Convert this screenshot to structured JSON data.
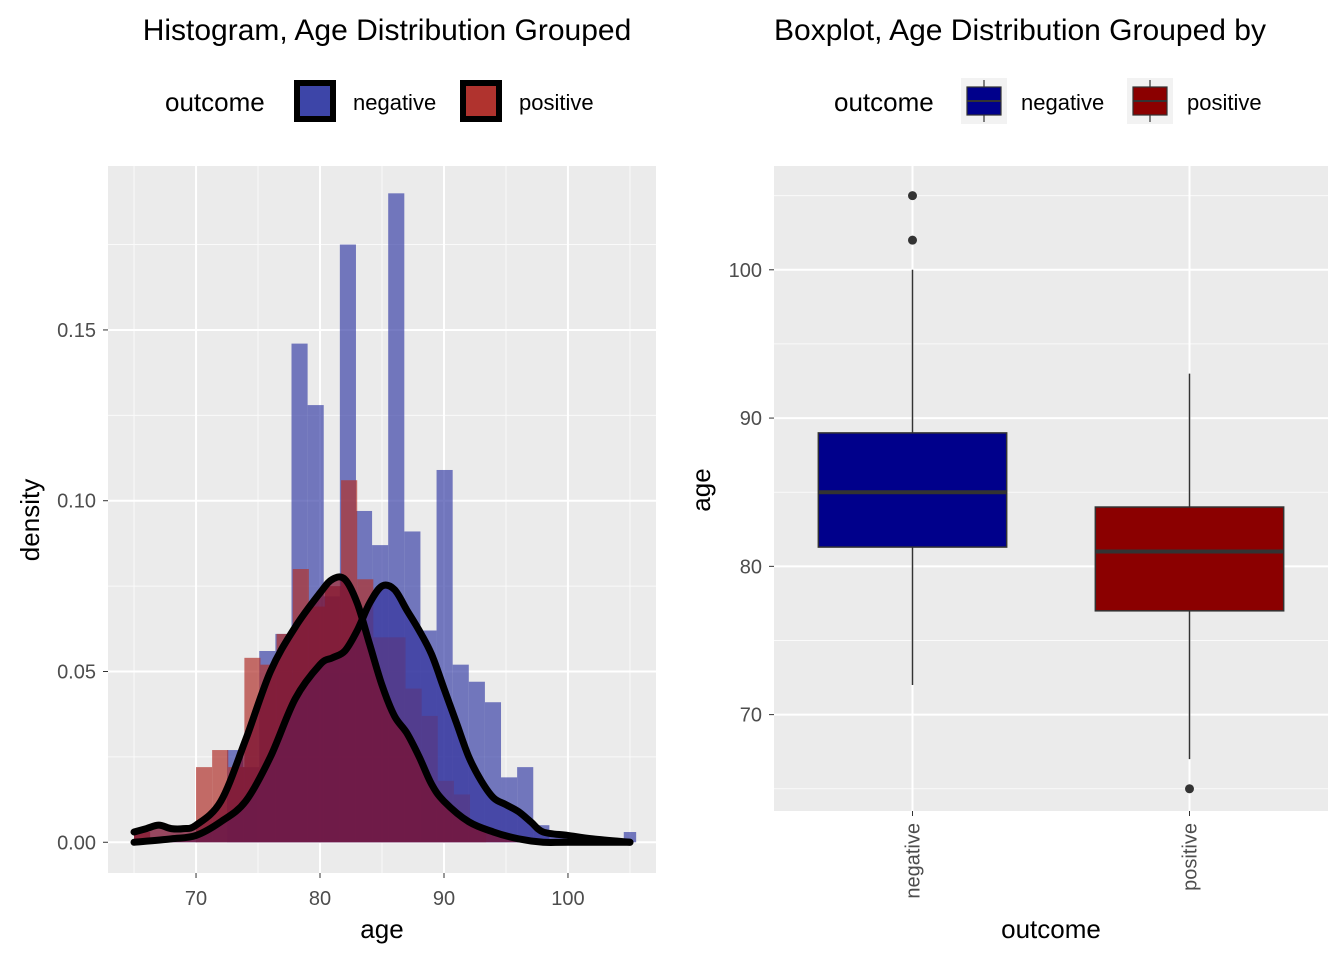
{
  "chart_data": [
    {
      "type": "histogram",
      "title": "Histogram, Age Distribution Grouped",
      "xlabel": "age",
      "ylabel": "density",
      "xlim": [
        62.9,
        107.1
      ],
      "ylim": [
        -0.009,
        0.198
      ],
      "xticks": [
        70,
        80,
        90,
        100
      ],
      "yticks": [
        0.0,
        0.05,
        0.1,
        0.15
      ],
      "ytick_labels": [
        "0.00",
        "0.05",
        "0.10",
        "0.15"
      ],
      "grid": true,
      "legend": {
        "title": "outcome",
        "position": "top",
        "entries": [
          "negative",
          "positive"
        ]
      },
      "series": [
        {
          "name": "negative",
          "color": "#3d45a8",
          "bins": [
            {
              "x0": 72.5,
              "x1": 73.8,
              "density": 0.027
            },
            {
              "x0": 73.8,
              "x1": 75.1,
              "density": 0.022
            },
            {
              "x0": 75.1,
              "x1": 76.4,
              "density": 0.056
            },
            {
              "x0": 76.4,
              "x1": 77.7,
              "density": 0.061
            },
            {
              "x0": 77.7,
              "x1": 79.0,
              "density": 0.146
            },
            {
              "x0": 79.0,
              "x1": 80.3,
              "density": 0.128
            },
            {
              "x0": 80.3,
              "x1": 81.6,
              "density": 0.072
            },
            {
              "x0": 81.6,
              "x1": 82.9,
              "density": 0.175
            },
            {
              "x0": 82.9,
              "x1": 84.2,
              "density": 0.097
            },
            {
              "x0": 84.2,
              "x1": 85.5,
              "density": 0.087
            },
            {
              "x0": 85.5,
              "x1": 86.8,
              "density": 0.19
            },
            {
              "x0": 86.8,
              "x1": 88.1,
              "density": 0.091
            },
            {
              "x0": 88.1,
              "x1": 89.4,
              "density": 0.062
            },
            {
              "x0": 89.4,
              "x1": 90.7,
              "density": 0.109
            },
            {
              "x0": 90.7,
              "x1": 92.0,
              "density": 0.052
            },
            {
              "x0": 92.0,
              "x1": 93.3,
              "density": 0.047
            },
            {
              "x0": 93.3,
              "x1": 94.6,
              "density": 0.041
            },
            {
              "x0": 94.6,
              "x1": 95.9,
              "density": 0.019
            },
            {
              "x0": 95.9,
              "x1": 97.2,
              "density": 0.022
            },
            {
              "x0": 97.2,
              "x1": 98.5,
              "density": 0.005
            },
            {
              "x0": 98.5,
              "x1": 104.5,
              "density": 0.001
            },
            {
              "x0": 104.5,
              "x1": 105.5,
              "density": 0.003
            }
          ],
          "density_curve": {
            "x": [
              65,
              68,
              70,
              72,
              74,
              76,
              78,
              80,
              81,
              82,
              83,
              84,
              85,
              86,
              87,
              88,
              89,
              90,
              91,
              92,
              93,
              94,
              95,
              96,
              97,
              98,
              100,
              102,
              105
            ],
            "y": [
              0.0,
              0.001,
              0.002,
              0.006,
              0.012,
              0.025,
              0.042,
              0.052,
              0.054,
              0.056,
              0.062,
              0.07,
              0.075,
              0.074,
              0.068,
              0.062,
              0.055,
              0.045,
              0.035,
              0.025,
              0.018,
              0.013,
              0.011,
              0.009,
              0.006,
              0.003,
              0.002,
              0.001,
              0.0
            ]
          }
        },
        {
          "name": "positive",
          "color": "#b0332e",
          "bins": [
            {
              "x0": 65.0,
              "x1": 66.3,
              "density": 0.003
            },
            {
              "x0": 70.0,
              "x1": 71.3,
              "density": 0.022
            },
            {
              "x0": 71.3,
              "x1": 72.6,
              "density": 0.027
            },
            {
              "x0": 72.6,
              "x1": 73.9,
              "density": 0.022
            },
            {
              "x0": 73.9,
              "x1": 75.2,
              "density": 0.054
            },
            {
              "x0": 75.2,
              "x1": 76.5,
              "density": 0.052
            },
            {
              "x0": 76.5,
              "x1": 77.8,
              "density": 0.061
            },
            {
              "x0": 77.8,
              "x1": 79.1,
              "density": 0.08
            },
            {
              "x0": 79.1,
              "x1": 80.4,
              "density": 0.069
            },
            {
              "x0": 80.4,
              "x1": 81.7,
              "density": 0.075
            },
            {
              "x0": 81.7,
              "x1": 83.0,
              "density": 0.106
            },
            {
              "x0": 83.0,
              "x1": 84.3,
              "density": 0.077
            },
            {
              "x0": 84.3,
              "x1": 85.6,
              "density": 0.06
            },
            {
              "x0": 85.6,
              "x1": 86.9,
              "density": 0.06
            },
            {
              "x0": 86.9,
              "x1": 88.2,
              "density": 0.045
            },
            {
              "x0": 88.2,
              "x1": 89.5,
              "density": 0.037
            },
            {
              "x0": 89.5,
              "x1": 90.8,
              "density": 0.018
            },
            {
              "x0": 90.8,
              "x1": 92.1,
              "density": 0.014
            },
            {
              "x0": 92.1,
              "x1": 93.4,
              "density": 0.005
            }
          ],
          "density_curve": {
            "x": [
              65,
              66,
              67,
              68,
              69,
              70,
              72,
              74,
              76,
              78,
              80,
              81,
              82,
              83,
              84,
              85,
              86,
              87,
              88,
              89,
              90,
              92,
              94,
              96,
              98,
              100,
              105
            ],
            "y": [
              0.003,
              0.004,
              0.005,
              0.004,
              0.004,
              0.005,
              0.012,
              0.03,
              0.05,
              0.063,
              0.073,
              0.077,
              0.077,
              0.07,
              0.058,
              0.046,
              0.037,
              0.032,
              0.025,
              0.017,
              0.012,
              0.006,
              0.003,
              0.001,
              0.0,
              0.0,
              0.0
            ]
          }
        }
      ]
    },
    {
      "type": "boxplot",
      "title": "Boxplot, Age Distribution Grouped by",
      "xlabel": "outcome",
      "ylabel": "age",
      "categories": [
        "negative",
        "positive"
      ],
      "ylim": [
        63.5,
        107
      ],
      "yticks": [
        70,
        80,
        90,
        100
      ],
      "grid": true,
      "legend": {
        "title": "outcome",
        "position": "top",
        "entries": [
          "negative",
          "positive"
        ]
      },
      "series": [
        {
          "name": "negative",
          "color": "#00008b",
          "min": 72,
          "q1": 81.3,
          "median": 85,
          "q3": 89,
          "max": 100,
          "outliers": [
            102,
            105
          ]
        },
        {
          "name": "positive",
          "color": "#8b0000",
          "min": 67,
          "q1": 77,
          "median": 81,
          "q3": 84,
          "max": 93,
          "outliers": [
            65
          ]
        }
      ]
    }
  ]
}
